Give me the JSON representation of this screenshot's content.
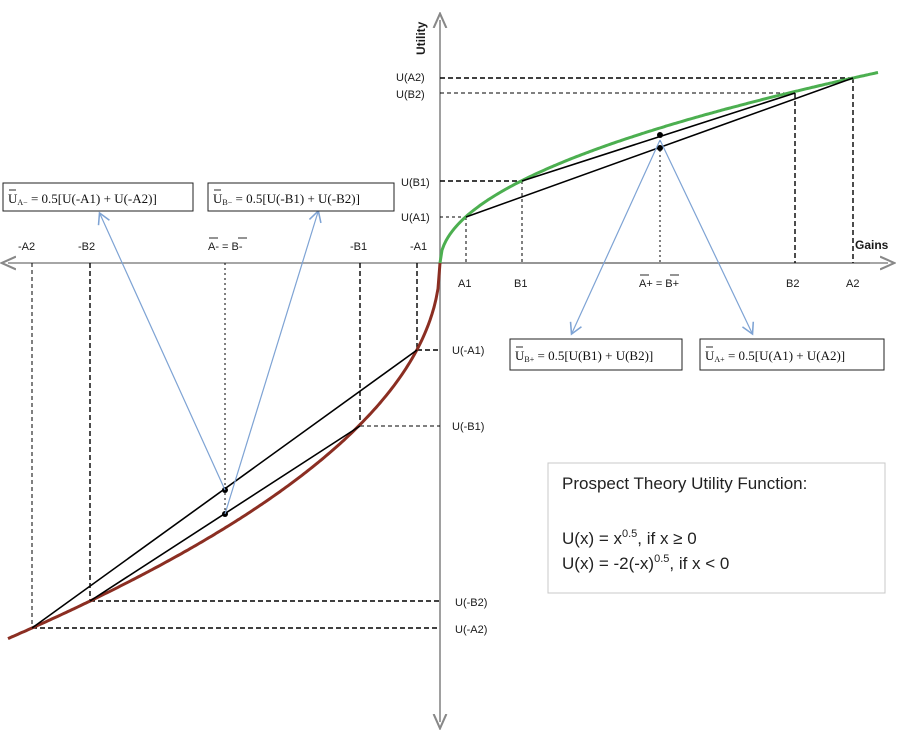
{
  "axes": {
    "y_label": "Utility",
    "x_label": "Gains"
  },
  "x_labels": {
    "neg_a2": "-A2",
    "neg_b2": "-B2",
    "neg_mean": "A- = B-",
    "neg_b1": "-B1",
    "neg_a1": "-A1",
    "a1": "A1",
    "b1": "B1",
    "pos_mean": "A+ = B+",
    "b2": "B2",
    "a2": "A2"
  },
  "y_labels": {
    "u_a2": "U(A2)",
    "u_b2": "U(B2)",
    "u_b1": "U(B1)",
    "u_a1": "U(A1)",
    "u_neg_a1": "U(-A1)",
    "u_neg_b1": "U(-B1)",
    "u_neg_b2": "U(-B2)",
    "u_neg_a2": "U(-A2)"
  },
  "formula_boxes": {
    "ua_minus": {
      "u": "U",
      "sub": "A−",
      "rhs": " = 0.5[U(-A1) + U(-A2)]"
    },
    "ub_minus": {
      "u": "U",
      "sub": "B−",
      "rhs": " = 0.5[U(-B1) + U(-B2)]"
    },
    "ub_plus": {
      "u": "U",
      "sub": "B+",
      "rhs": " = 0.5[U(B1) + U(B2)]"
    },
    "ua_plus": {
      "u": "U",
      "sub": "A+",
      "rhs": " = 0.5[U(A1) + U(A2)]"
    }
  },
  "prospect_box": {
    "title": "Prospect Theory Utility Function:",
    "eq1_base": "U(x) = x",
    "eq1_exp": "0.5",
    "eq1_cond": ", if x ≥ 0",
    "eq2_base": "U(x) = -2(-x)",
    "eq2_exp": "0.5",
    "eq2_cond": ", if x < 0"
  },
  "colors": {
    "gain_curve": "#4caf50",
    "loss_curve": "#8b2e22",
    "arrow": "#7ea3d4",
    "axis": "#888888"
  }
}
